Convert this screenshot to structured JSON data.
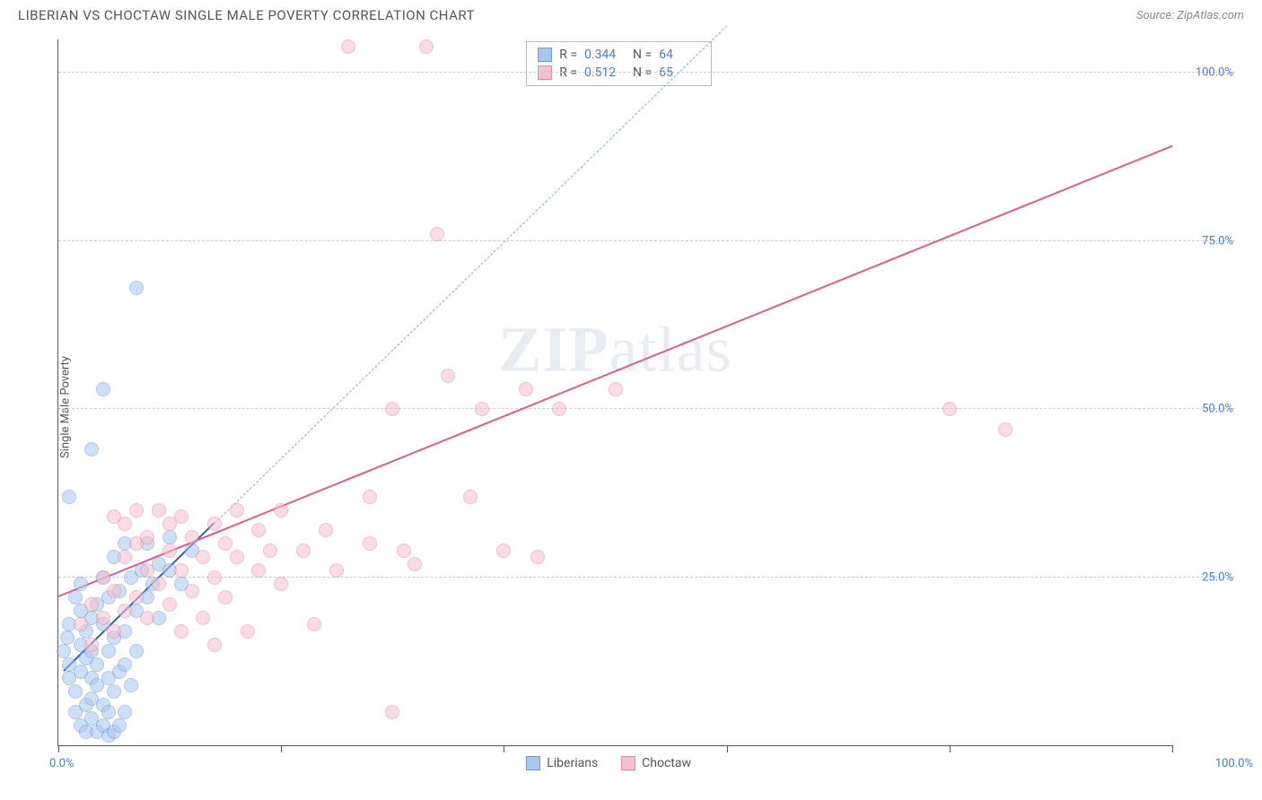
{
  "title": "LIBERIAN VS CHOCTAW SINGLE MALE POVERTY CORRELATION CHART",
  "source_label": "Source: ZipAtlas.com",
  "y_axis_label": "Single Male Poverty",
  "watermark": {
    "bold": "ZIP",
    "rest": "atlas"
  },
  "chart": {
    "type": "scatter",
    "xlim": [
      0,
      100
    ],
    "ylim": [
      0,
      105
    ],
    "x_ticks": [
      0,
      20,
      40,
      60,
      80,
      100
    ],
    "y_gridlines": [
      25,
      50,
      75,
      100
    ],
    "y_labels": [
      "25.0%",
      "50.0%",
      "75.0%",
      "100.0%"
    ],
    "x_min_label": "0.0%",
    "x_max_label": "100.0%",
    "background": "#ffffff",
    "grid_color": "#cccccc",
    "axis_color": "#555555",
    "tick_label_color": "#4a7bd0",
    "point_radius": 8,
    "point_opacity": 0.55,
    "series": [
      {
        "name": "Liberians",
        "fill": "#a9c6ee",
        "stroke": "#6f9bd8",
        "trend_color": "#2b5fb0",
        "trend_dash_color": "#89a9d9",
        "trend": {
          "x1": 0.5,
          "y1": 11,
          "x2": 14,
          "y2": 33,
          "dash_to_x": 60,
          "dash_to_y": 107
        },
        "R": "0.344",
        "N": "64",
        "points": [
          [
            0.5,
            14
          ],
          [
            0.8,
            16
          ],
          [
            1,
            18
          ],
          [
            1,
            12
          ],
          [
            1,
            10
          ],
          [
            1.5,
            22
          ],
          [
            1.5,
            8
          ],
          [
            1.5,
            5
          ],
          [
            2,
            24
          ],
          [
            2,
            15
          ],
          [
            2,
            11
          ],
          [
            2,
            20
          ],
          [
            2,
            3
          ],
          [
            2.5,
            17
          ],
          [
            2.5,
            6
          ],
          [
            2.5,
            2
          ],
          [
            2.5,
            13
          ],
          [
            3,
            19
          ],
          [
            3,
            10
          ],
          [
            3,
            7
          ],
          [
            3,
            4
          ],
          [
            3,
            14
          ],
          [
            3.5,
            21
          ],
          [
            3.5,
            2
          ],
          [
            3.5,
            12
          ],
          [
            3.5,
            9
          ],
          [
            4,
            25
          ],
          [
            4,
            18
          ],
          [
            4,
            3
          ],
          [
            4,
            6
          ],
          [
            4.5,
            14
          ],
          [
            4.5,
            10
          ],
          [
            4.5,
            22
          ],
          [
            4.5,
            5
          ],
          [
            4.5,
            1.5
          ],
          [
            5,
            28
          ],
          [
            5,
            16
          ],
          [
            5,
            2
          ],
          [
            5,
            8
          ],
          [
            5.5,
            23
          ],
          [
            5.5,
            11
          ],
          [
            5.5,
            3
          ],
          [
            6,
            30
          ],
          [
            6,
            17
          ],
          [
            6,
            5
          ],
          [
            6,
            12
          ],
          [
            6.5,
            25
          ],
          [
            6.5,
            9
          ],
          [
            7,
            20
          ],
          [
            7,
            14
          ],
          [
            7.5,
            26
          ],
          [
            8,
            22
          ],
          [
            8,
            30
          ],
          [
            8.5,
            24
          ],
          [
            9,
            19
          ],
          [
            9,
            27
          ],
          [
            10,
            26
          ],
          [
            10,
            31
          ],
          [
            11,
            24
          ],
          [
            12,
            29
          ],
          [
            3,
            44
          ],
          [
            4,
            53
          ],
          [
            7,
            68
          ],
          [
            1,
            37
          ]
        ]
      },
      {
        "name": "Choctaw",
        "fill": "#f6c0ce",
        "stroke": "#e88aa3",
        "trend_color": "#e85a8a",
        "trend": {
          "x1": 0,
          "y1": 22,
          "x2": 100,
          "y2": 89
        },
        "R": "0.512",
        "N": "65",
        "points": [
          [
            2,
            18
          ],
          [
            3,
            21
          ],
          [
            3,
            15
          ],
          [
            4,
            25
          ],
          [
            4,
            19
          ],
          [
            5,
            17
          ],
          [
            5,
            23
          ],
          [
            5,
            34
          ],
          [
            6,
            20
          ],
          [
            6,
            28
          ],
          [
            6,
            33
          ],
          [
            7,
            22
          ],
          [
            7,
            30
          ],
          [
            7,
            35
          ],
          [
            8,
            19
          ],
          [
            8,
            26
          ],
          [
            8,
            31
          ],
          [
            9,
            24
          ],
          [
            9,
            35
          ],
          [
            10,
            21
          ],
          [
            10,
            29
          ],
          [
            10,
            33
          ],
          [
            11,
            17
          ],
          [
            11,
            26
          ],
          [
            11,
            34
          ],
          [
            12,
            23
          ],
          [
            12,
            31
          ],
          [
            13,
            19
          ],
          [
            13,
            28
          ],
          [
            14,
            25
          ],
          [
            14,
            33
          ],
          [
            15,
            30
          ],
          [
            15,
            22
          ],
          [
            16,
            28
          ],
          [
            16,
            35
          ],
          [
            17,
            17
          ],
          [
            18,
            26
          ],
          [
            18,
            32
          ],
          [
            19,
            29
          ],
          [
            20,
            24
          ],
          [
            20,
            35
          ],
          [
            22,
            29
          ],
          [
            23,
            18
          ],
          [
            24,
            32
          ],
          [
            25,
            26
          ],
          [
            26,
            104
          ],
          [
            28,
            30
          ],
          [
            28,
            37
          ],
          [
            30,
            50
          ],
          [
            30,
            5
          ],
          [
            31,
            29
          ],
          [
            32,
            27
          ],
          [
            33,
            104
          ],
          [
            34,
            76
          ],
          [
            35,
            55
          ],
          [
            37,
            37
          ],
          [
            38,
            50
          ],
          [
            40,
            29
          ],
          [
            42,
            53
          ],
          [
            43,
            28
          ],
          [
            45,
            50
          ],
          [
            50,
            53
          ],
          [
            80,
            50
          ],
          [
            85,
            47
          ],
          [
            14,
            15
          ]
        ]
      }
    ],
    "stats_box": {
      "rows": [
        {
          "swatch_fill": "#a9c6ee",
          "swatch_stroke": "#6f9bd8",
          "R": "0.344",
          "N": "64"
        },
        {
          "swatch_fill": "#f6c0ce",
          "swatch_stroke": "#e88aa3",
          "R": "0.512",
          "N": "65"
        }
      ]
    },
    "legend": [
      {
        "label": "Liberians",
        "fill": "#a9c6ee",
        "stroke": "#6f9bd8"
      },
      {
        "label": "Choctaw",
        "fill": "#f6c0ce",
        "stroke": "#e88aa3"
      }
    ]
  }
}
